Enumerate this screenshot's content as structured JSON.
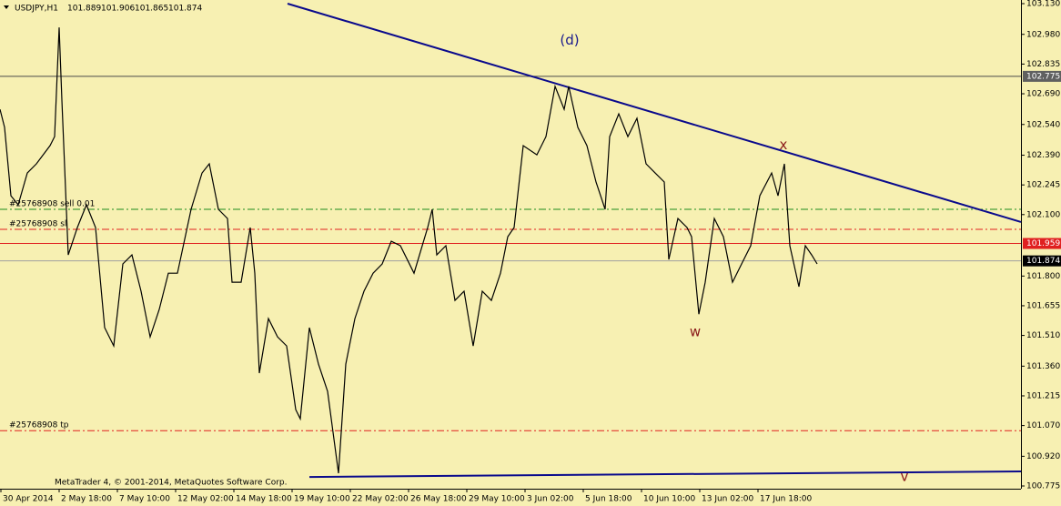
{
  "chart_data": {
    "type": "line",
    "symbol": "USDJPY,H1",
    "ohlc": [
      101.889,
      101.906,
      101.865,
      101.874
    ],
    "footer": "MetaTrader 4, © 2001-2014, MetaQuotes Software Corp.",
    "xlim": [
      0,
      1122
    ],
    "ylim": [
      100.775,
      103.13
    ],
    "yticks": [
      {
        "value": 103.13,
        "label": "103.130"
      },
      {
        "value": 102.98,
        "label": "102.980"
      },
      {
        "value": 102.835,
        "label": "102.835"
      },
      {
        "value": 102.69,
        "label": "102.690"
      },
      {
        "value": 102.54,
        "label": "102.540"
      },
      {
        "value": 102.39,
        "label": "102.390"
      },
      {
        "value": 102.245,
        "label": "102.245"
      },
      {
        "value": 102.1,
        "label": "102.100"
      },
      {
        "value": 101.8,
        "label": "101.800"
      },
      {
        "value": 101.655,
        "label": "101.655"
      },
      {
        "value": 101.51,
        "label": "101.510"
      },
      {
        "value": 101.36,
        "label": "101.360"
      },
      {
        "value": 101.215,
        "label": "101.215"
      },
      {
        "value": 101.07,
        "label": "101.070"
      },
      {
        "value": 100.92,
        "label": "100.920"
      },
      {
        "value": 100.775,
        "label": "100.775"
      }
    ],
    "xticks": [
      {
        "value": 0,
        "label": "30 Apr 2014"
      },
      {
        "value": 64,
        "label": "2 May 18:00"
      },
      {
        "value": 128,
        "label": "7 May 10:00"
      },
      {
        "value": 192,
        "label": "12 May 02:00"
      },
      {
        "value": 256,
        "label": "14 May 18:00"
      },
      {
        "value": 320,
        "label": "19 May 10:00"
      },
      {
        "value": 384,
        "label": "22 May 02:00"
      },
      {
        "value": 448,
        "label": "26 May 18:00"
      },
      {
        "value": 512,
        "label": "29 May 10:00"
      },
      {
        "value": 576,
        "label": "3 Jun 02:00"
      },
      {
        "value": 640,
        "label": "5 Jun 18:00"
      },
      {
        "value": 704,
        "label": "10 Jun 10:00"
      },
      {
        "value": 768,
        "label": "13 Jun 02:00"
      },
      {
        "value": 832,
        "label": "17 Jun 18:00"
      }
    ],
    "series": [
      {
        "name": "USDJPY",
        "color": "#000000",
        "x": [
          0,
          5,
          12,
          20,
          30,
          40,
          55,
          60,
          65,
          68,
          75,
          85,
          95,
          105,
          115,
          125,
          135,
          145,
          155,
          165,
          175,
          185,
          195,
          210,
          222,
          230,
          240,
          250,
          255,
          265,
          275,
          280,
          285,
          295,
          305,
          315,
          325,
          330,
          340,
          350,
          360,
          372,
          380,
          390,
          400,
          410,
          420,
          430,
          440,
          455,
          470,
          475,
          480,
          490,
          500,
          510,
          520,
          530,
          540,
          550,
          558,
          565,
          575,
          590,
          600,
          610,
          620,
          625,
          635,
          645,
          655,
          665,
          670,
          680,
          690,
          700,
          710,
          720,
          730,
          735,
          745,
          755,
          760,
          768,
          775,
          785,
          795,
          805,
          815,
          825,
          835,
          848,
          855,
          862,
          868,
          878,
          885,
          892,
          898
        ],
        "values": [
          102.614,
          102.526,
          102.192,
          102.148,
          102.303,
          102.348,
          102.437,
          102.481,
          103.014,
          102.659,
          101.903,
          102.037,
          102.148,
          102.037,
          101.548,
          101.459,
          101.859,
          101.903,
          101.726,
          101.503,
          101.637,
          101.814,
          101.814,
          102.126,
          102.303,
          102.348,
          102.126,
          102.081,
          101.77,
          101.77,
          102.037,
          101.814,
          101.326,
          101.592,
          101.503,
          101.459,
          101.148,
          101.103,
          101.548,
          101.37,
          101.237,
          100.837,
          101.37,
          101.592,
          101.726,
          101.814,
          101.859,
          101.97,
          101.948,
          101.814,
          102.037,
          102.126,
          101.903,
          101.948,
          101.681,
          101.726,
          101.459,
          101.726,
          101.681,
          101.814,
          101.992,
          102.037,
          102.437,
          102.392,
          102.481,
          102.726,
          102.614,
          102.726,
          102.526,
          102.437,
          102.259,
          102.126,
          102.481,
          102.592,
          102.481,
          102.57,
          102.348,
          102.303,
          102.259,
          101.881,
          102.081,
          102.037,
          101.992,
          101.614,
          101.77,
          102.081,
          101.992,
          101.77,
          101.859,
          101.948,
          102.192,
          102.303,
          102.192,
          102.348,
          101.948,
          101.748,
          101.948,
          101.903,
          101.859
        ]
      }
    ],
    "hlines": [
      {
        "value": 102.775,
        "label": "102.775",
        "color": "#4a4a4a"
      },
      {
        "value": 101.959,
        "label": "101.959",
        "color": "#e02020"
      },
      {
        "value": 101.874,
        "label": "101.874",
        "color": "#a0a0a0"
      }
    ],
    "orders": [
      {
        "name": "#25768908 sell 0.01",
        "value": 102.126,
        "color": "#1c8c1c"
      },
      {
        "name": "#25768908 sl",
        "value": 102.028,
        "color": "#e02020"
      },
      {
        "name": "#25768908 tp",
        "value": 101.045,
        "color": "#e02020"
      }
    ],
    "trendlines": [
      {
        "x": [
          316,
          1122
        ],
        "values": [
          103.13,
          102.064
        ],
        "color": "#0a0a8c"
      },
      {
        "x": [
          340,
          1122
        ],
        "values": [
          100.819,
          100.846
        ],
        "color": "#0a0a8c"
      }
    ],
    "annotations": [
      {
        "text": "(d)",
        "x": 626,
        "y": 102.95,
        "color": "#1a1a8c"
      },
      {
        "text": "x",
        "x": 861,
        "y": 102.44,
        "color": "#8b1a1a"
      },
      {
        "text": "w",
        "x": 764,
        "y": 101.526,
        "color": "#8b1a1a"
      },
      {
        "text": "v",
        "x": 994,
        "y": 100.82,
        "color": "#8b1a1a"
      }
    ]
  }
}
